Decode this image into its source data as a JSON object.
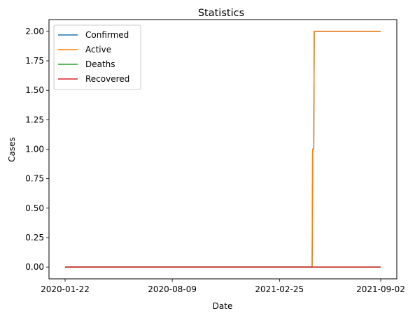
{
  "chart_data": {
    "type": "line",
    "title": "Statistics",
    "xlabel": "Date",
    "ylabel": "Cases",
    "x_ticks": [
      "2020-01-22",
      "2020-08-09",
      "2021-02-25",
      "2021-09-02"
    ],
    "x_range": [
      "2020-01-22",
      "2021-09-02"
    ],
    "y_ticks": [
      "0.00",
      "0.25",
      "0.50",
      "0.75",
      "1.00",
      "1.25",
      "1.50",
      "1.75",
      "2.00"
    ],
    "ylim": [
      -0.1,
      2.1
    ],
    "grid": false,
    "legend_position": "top-left",
    "series": [
      {
        "name": "Confirmed",
        "color": "#1f77b4",
        "points": [
          [
            "2020-01-22",
            0
          ],
          [
            "2021-04-27",
            0
          ],
          [
            "2021-04-28",
            1
          ],
          [
            "2021-04-30",
            1
          ],
          [
            "2021-05-01",
            2
          ],
          [
            "2021-09-02",
            2
          ]
        ]
      },
      {
        "name": "Active",
        "color": "#ff7f0e",
        "points": [
          [
            "2020-01-22",
            0
          ],
          [
            "2021-04-27",
            0
          ],
          [
            "2021-04-28",
            1
          ],
          [
            "2021-04-30",
            1
          ],
          [
            "2021-05-01",
            2
          ],
          [
            "2021-09-02",
            2
          ]
        ]
      },
      {
        "name": "Deaths",
        "color": "#2ca02c",
        "points": [
          [
            "2020-01-22",
            0
          ],
          [
            "2021-09-02",
            0
          ]
        ]
      },
      {
        "name": "Recovered",
        "color": "#d62728",
        "points": [
          [
            "2020-01-22",
            0
          ],
          [
            "2021-09-02",
            0
          ]
        ]
      }
    ]
  }
}
